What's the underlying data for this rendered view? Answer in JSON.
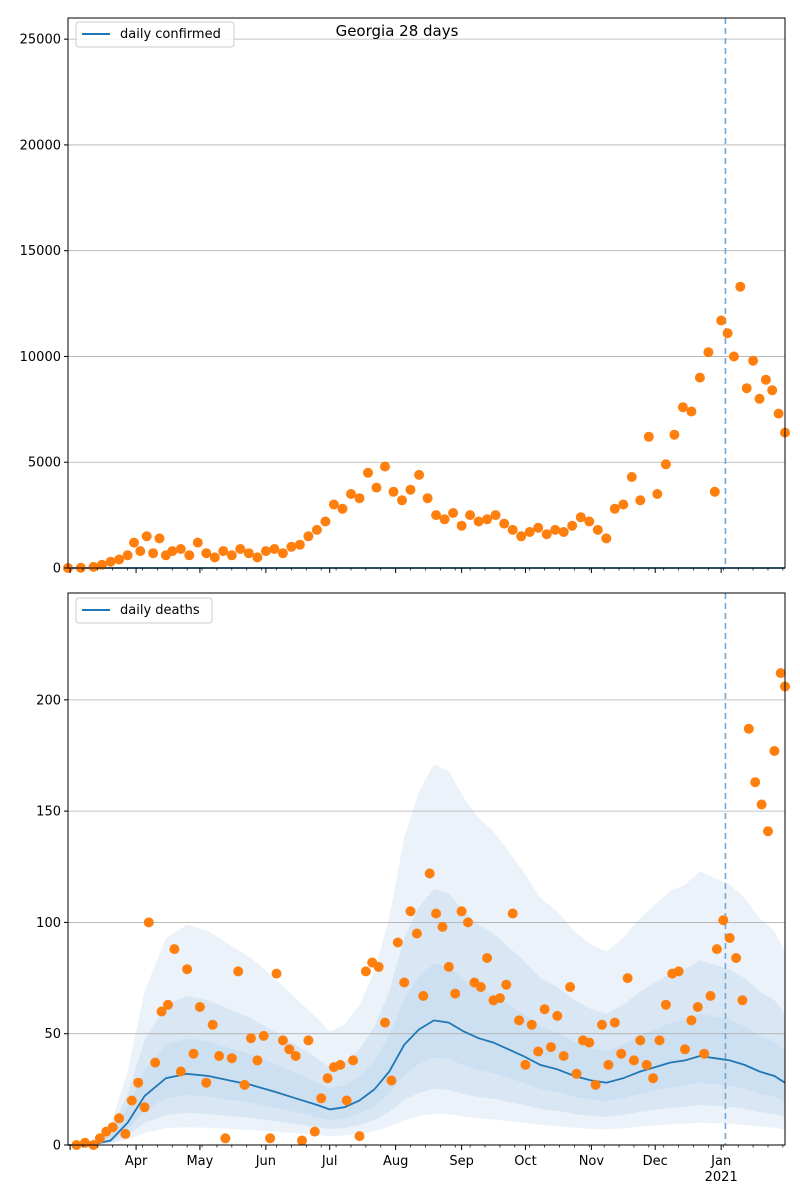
{
  "chart_data": [
    {
      "type": "scatter",
      "title": "Georgia 28 days",
      "legend": [
        "daily confirmed"
      ],
      "legend_position": "top-left",
      "grid": "horizontal",
      "x_range": [
        "2020-02-29",
        "2021-01-31"
      ],
      "ylim": [
        0,
        26000
      ],
      "yticks": [
        0,
        5000,
        10000,
        15000,
        20000,
        25000
      ],
      "xtick_labels": [],
      "vline_date": "2021-01-03",
      "series": [
        {
          "name": "daily confirmed",
          "kind": "line",
          "color": "#1f77b4",
          "x": [
            "2020-02-29",
            "2021-01-31"
          ],
          "y": [
            0,
            0
          ]
        },
        {
          "kind": "points",
          "color": "#ff7f0e",
          "x": [
            "2020-02-29",
            "2020-03-06",
            "2020-03-12",
            "2020-03-16",
            "2020-03-20",
            "2020-03-24",
            "2020-03-28",
            "2020-03-31",
            "2020-04-03",
            "2020-04-06",
            "2020-04-09",
            "2020-04-12",
            "2020-04-15",
            "2020-04-18",
            "2020-04-22",
            "2020-04-26",
            "2020-04-30",
            "2020-05-04",
            "2020-05-08",
            "2020-05-12",
            "2020-05-16",
            "2020-05-20",
            "2020-05-24",
            "2020-05-28",
            "2020-06-01",
            "2020-06-05",
            "2020-06-09",
            "2020-06-13",
            "2020-06-17",
            "2020-06-21",
            "2020-06-25",
            "2020-06-29",
            "2020-07-03",
            "2020-07-07",
            "2020-07-11",
            "2020-07-15",
            "2020-07-19",
            "2020-07-23",
            "2020-07-27",
            "2020-07-31",
            "2020-08-04",
            "2020-08-08",
            "2020-08-12",
            "2020-08-16",
            "2020-08-20",
            "2020-08-24",
            "2020-08-28",
            "2020-09-01",
            "2020-09-05",
            "2020-09-09",
            "2020-09-13",
            "2020-09-17",
            "2020-09-21",
            "2020-09-25",
            "2020-09-29",
            "2020-10-03",
            "2020-10-07",
            "2020-10-11",
            "2020-10-15",
            "2020-10-19",
            "2020-10-23",
            "2020-10-27",
            "2020-10-31",
            "2020-11-04",
            "2020-11-08",
            "2020-11-12",
            "2020-11-16",
            "2020-11-20",
            "2020-11-24",
            "2020-11-28",
            "2020-12-02",
            "2020-12-06",
            "2020-12-10",
            "2020-12-14",
            "2020-12-18",
            "2020-12-22",
            "2020-12-26",
            "2020-12-29",
            "2021-01-01",
            "2021-01-04",
            "2021-01-07",
            "2021-01-10",
            "2021-01-13",
            "2021-01-16",
            "2021-01-19",
            "2021-01-22",
            "2021-01-25",
            "2021-01-28",
            "2021-01-31"
          ],
          "y": [
            0,
            10,
            50,
            150,
            300,
            400,
            600,
            1200,
            800,
            1500,
            700,
            1400,
            600,
            800,
            900,
            600,
            1200,
            700,
            500,
            800,
            600,
            900,
            700,
            500,
            800,
            900,
            700,
            1000,
            1100,
            1500,
            1800,
            2200,
            3000,
            2800,
            3500,
            3300,
            4500,
            3800,
            4800,
            3600,
            3200,
            3700,
            4400,
            3300,
            2500,
            2300,
            2600,
            2000,
            2500,
            2200,
            2300,
            2500,
            2100,
            1800,
            1500,
            1700,
            1900,
            1600,
            1800,
            1700,
            2000,
            2400,
            2200,
            1800,
            1400,
            2800,
            3000,
            4300,
            3200,
            6200,
            3500,
            4900,
            6300,
            7600,
            7400,
            9000,
            10200,
            3600,
            11700,
            11100,
            10000,
            13300,
            8500,
            9800,
            8000,
            8900,
            8400,
            7300,
            6400
          ]
        }
      ]
    },
    {
      "type": "scatter",
      "title": "",
      "legend": [
        "daily deaths"
      ],
      "legend_position": "top-left",
      "grid": "horizontal",
      "x_range": [
        "2020-02-29",
        "2021-01-31"
      ],
      "ylim": [
        0,
        248
      ],
      "yticks": [
        0,
        50,
        100,
        150,
        200
      ],
      "xtick_labels": [
        "Apr",
        "May",
        "Jun",
        "Jul",
        "Aug",
        "Sep",
        "Oct",
        "Nov",
        "Dec",
        "Jan\n2021"
      ],
      "xtick_dates": [
        "2020-04-01",
        "2020-05-01",
        "2020-06-01",
        "2020-07-01",
        "2020-08-01",
        "2020-09-01",
        "2020-10-01",
        "2020-11-01",
        "2020-12-01",
        "2021-01-01"
      ],
      "vline_date": "2021-01-03",
      "series": [
        {
          "name": "daily deaths",
          "kind": "line",
          "color": "#1f77b4",
          "x": [
            "2020-02-29",
            "2020-03-10",
            "2020-03-20",
            "2020-03-28",
            "2020-04-05",
            "2020-04-15",
            "2020-04-25",
            "2020-05-05",
            "2020-05-15",
            "2020-05-25",
            "2020-06-05",
            "2020-06-15",
            "2020-06-25",
            "2020-07-01",
            "2020-07-08",
            "2020-07-15",
            "2020-07-22",
            "2020-07-29",
            "2020-08-05",
            "2020-08-12",
            "2020-08-19",
            "2020-08-26",
            "2020-09-02",
            "2020-09-09",
            "2020-09-16",
            "2020-09-23",
            "2020-09-30",
            "2020-10-08",
            "2020-10-16",
            "2020-10-24",
            "2020-11-01",
            "2020-11-08",
            "2020-11-16",
            "2020-11-24",
            "2020-12-01",
            "2020-12-08",
            "2020-12-15",
            "2020-12-22",
            "2020-12-29",
            "2021-01-05",
            "2021-01-12",
            "2021-01-19",
            "2021-01-26",
            "2021-01-31"
          ],
          "y": [
            0,
            0,
            2,
            10,
            22,
            30,
            32,
            31,
            29,
            27,
            24,
            21,
            18,
            16,
            17,
            20,
            25,
            33,
            45,
            52,
            56,
            55,
            51,
            48,
            46,
            43,
            40,
            36,
            34,
            31,
            29,
            28,
            30,
            33,
            35,
            37,
            38,
            40,
            39,
            38,
            36,
            33,
            31,
            28
          ]
        },
        {
          "kind": "points",
          "color": "#ff7f0e",
          "x": [
            "2020-03-04",
            "2020-03-08",
            "2020-03-12",
            "2020-03-15",
            "2020-03-18",
            "2020-03-21",
            "2020-03-24",
            "2020-03-27",
            "2020-03-30",
            "2020-04-02",
            "2020-04-05",
            "2020-04-07",
            "2020-04-10",
            "2020-04-13",
            "2020-04-16",
            "2020-04-19",
            "2020-04-22",
            "2020-04-25",
            "2020-04-28",
            "2020-05-01",
            "2020-05-04",
            "2020-05-07",
            "2020-05-10",
            "2020-05-13",
            "2020-05-16",
            "2020-05-19",
            "2020-05-22",
            "2020-05-25",
            "2020-05-28",
            "2020-05-31",
            "2020-06-03",
            "2020-06-06",
            "2020-06-09",
            "2020-06-12",
            "2020-06-15",
            "2020-06-18",
            "2020-06-21",
            "2020-06-24",
            "2020-06-27",
            "2020-06-30",
            "2020-07-03",
            "2020-07-06",
            "2020-07-09",
            "2020-07-12",
            "2020-07-15",
            "2020-07-18",
            "2020-07-21",
            "2020-07-24",
            "2020-07-27",
            "2020-07-30",
            "2020-08-02",
            "2020-08-05",
            "2020-08-08",
            "2020-08-11",
            "2020-08-14",
            "2020-08-17",
            "2020-08-20",
            "2020-08-23",
            "2020-08-26",
            "2020-08-29",
            "2020-09-01",
            "2020-09-04",
            "2020-09-07",
            "2020-09-10",
            "2020-09-13",
            "2020-09-16",
            "2020-09-19",
            "2020-09-22",
            "2020-09-25",
            "2020-09-28",
            "2020-10-01",
            "2020-10-04",
            "2020-10-07",
            "2020-10-10",
            "2020-10-13",
            "2020-10-16",
            "2020-10-19",
            "2020-10-22",
            "2020-10-25",
            "2020-10-28",
            "2020-10-31",
            "2020-11-03",
            "2020-11-06",
            "2020-11-09",
            "2020-11-12",
            "2020-11-15",
            "2020-11-18",
            "2020-11-21",
            "2020-11-24",
            "2020-11-27",
            "2020-11-30",
            "2020-12-03",
            "2020-12-06",
            "2020-12-09",
            "2020-12-12",
            "2020-12-15",
            "2020-12-18",
            "2020-12-21",
            "2020-12-24",
            "2020-12-27",
            "2020-12-30",
            "2021-01-02",
            "2021-01-05",
            "2021-01-08",
            "2021-01-11",
            "2021-01-14",
            "2021-01-17",
            "2021-01-20",
            "2021-01-23",
            "2021-01-26",
            "2021-01-29",
            "2021-01-31"
          ],
          "y": [
            0,
            1,
            0,
            3,
            6,
            8,
            12,
            5,
            20,
            28,
            17,
            100,
            37,
            60,
            63,
            88,
            33,
            79,
            41,
            62,
            28,
            54,
            40,
            3,
            39,
            78,
            27,
            48,
            38,
            49,
            3,
            77,
            47,
            43,
            40,
            2,
            47,
            6,
            21,
            30,
            35,
            36,
            20,
            38,
            4,
            78,
            82,
            80,
            55,
            29,
            91,
            73,
            105,
            95,
            67,
            122,
            104,
            98,
            80,
            68,
            105,
            100,
            73,
            71,
            84,
            65,
            66,
            72,
            104,
            56,
            36,
            54,
            42,
            61,
            44,
            58,
            40,
            71,
            32,
            47,
            46,
            27,
            54,
            36,
            55,
            41,
            75,
            38,
            47,
            36,
            30,
            47,
            63,
            77,
            78,
            43,
            56,
            62,
            41,
            67,
            88,
            101,
            93,
            84,
            65,
            187,
            163,
            153,
            141,
            177,
            212,
            206
          ]
        }
      ]
    }
  ],
  "colors": {
    "points": "#ff7f0e",
    "line": "#1f77b4",
    "band": "#c6dbef",
    "grid": "#b0b0b0",
    "vline": "#6fa8d8"
  }
}
